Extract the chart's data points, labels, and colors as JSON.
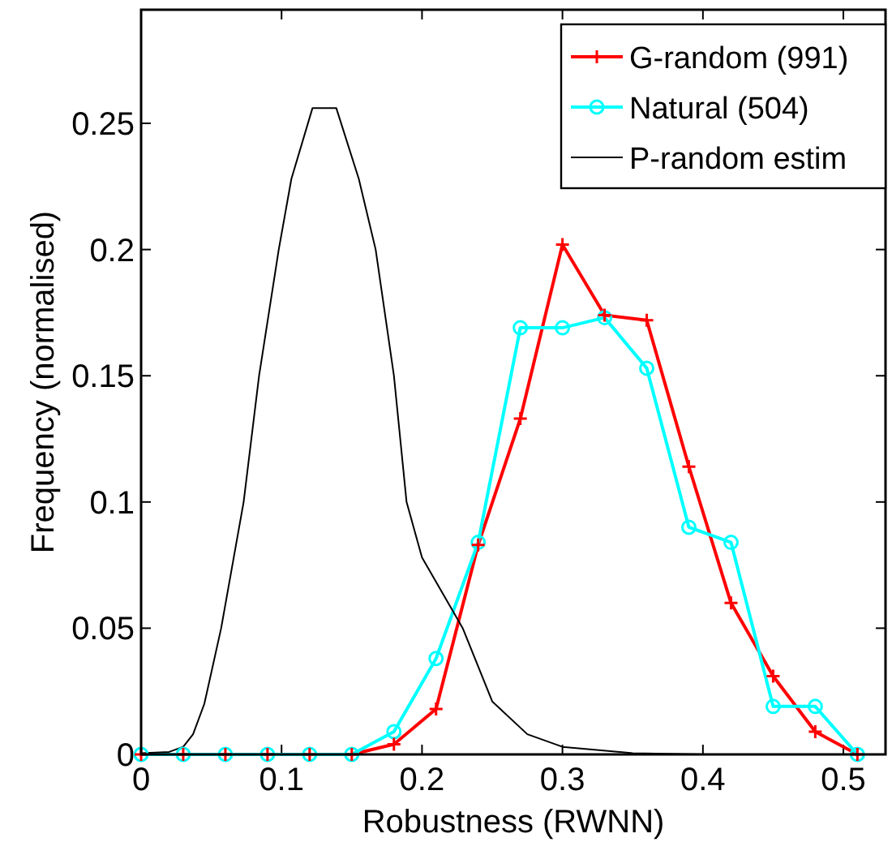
{
  "chart_data": {
    "type": "line",
    "xlabel": "Robustness (RWNN)",
    "ylabel": "Frequency (normalised)",
    "xlim": [
      0,
      0.53
    ],
    "ylim": [
      0,
      0.295
    ],
    "xticks": [
      0,
      0.1,
      0.2,
      0.3,
      0.4,
      0.5
    ],
    "yticks": [
      0,
      0.05,
      0.1,
      0.15,
      0.2,
      0.25
    ],
    "grid": false,
    "legend": "top right",
    "series": [
      {
        "name": "G-random (991)",
        "color": "#ff0000",
        "marker": "cross",
        "x": [
          0,
          0.03,
          0.06,
          0.09,
          0.12,
          0.15,
          0.18,
          0.21,
          0.24,
          0.27,
          0.3,
          0.33,
          0.36,
          0.39,
          0.42,
          0.45,
          0.48,
          0.51
        ],
        "values": [
          0,
          0,
          0,
          0,
          0,
          0,
          0.004,
          0.018,
          0.083,
          0.133,
          0.202,
          0.174,
          0.172,
          0.114,
          0.06,
          0.031,
          0.009,
          0
        ]
      },
      {
        "name": "Natural (504)",
        "color": "#00ffff",
        "marker": "circle",
        "x": [
          0,
          0.03,
          0.06,
          0.09,
          0.12,
          0.15,
          0.18,
          0.21,
          0.24,
          0.27,
          0.3,
          0.33,
          0.36,
          0.39,
          0.42,
          0.45,
          0.48,
          0.51
        ],
        "values": [
          0,
          0,
          0,
          0,
          0,
          0,
          0.009,
          0.038,
          0.084,
          0.169,
          0.169,
          0.173,
          0.153,
          0.09,
          0.084,
          0.019,
          0.019,
          0
        ]
      },
      {
        "name": "P-random estim",
        "color": "#000000",
        "marker": "none",
        "x": [
          0,
          0.02,
          0.03,
          0.037,
          0.045,
          0.057,
          0.073,
          0.084,
          0.098,
          0.107,
          0.122,
          0.139,
          0.155,
          0.167,
          0.18,
          0.189,
          0.2,
          0.229,
          0.25,
          0.275,
          0.3,
          0.35,
          0.4,
          0.52
        ],
        "values": [
          0.0005,
          0.001,
          0.003,
          0.008,
          0.02,
          0.05,
          0.1,
          0.15,
          0.2,
          0.228,
          0.256,
          0.256,
          0.228,
          0.2,
          0.15,
          0.1,
          0.078,
          0.05,
          0.021,
          0.008,
          0.003,
          0.0005,
          0,
          0
        ]
      }
    ]
  }
}
